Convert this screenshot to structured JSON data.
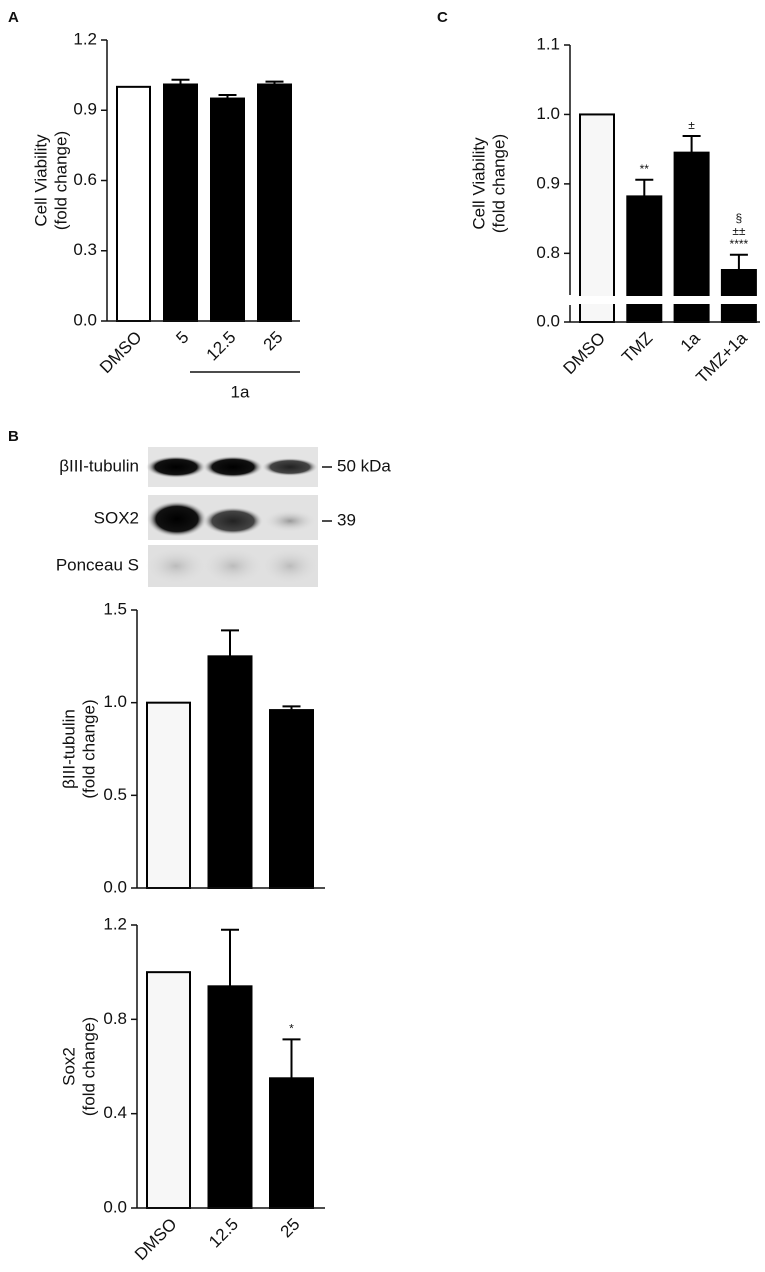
{
  "panels": [
    "A",
    "B",
    "C"
  ],
  "blot": {
    "rows": [
      {
        "label": "βIII-tubulin",
        "marker": "50 kDa"
      },
      {
        "label": "SOX2",
        "marker": "39"
      },
      {
        "label": "Ponceau S",
        "marker": null
      }
    ]
  },
  "chart_data": [
    {
      "type": "bar",
      "ylabel": [
        "Cell Viability",
        "(fold change)"
      ],
      "categories": [
        "DMSO",
        "5",
        "12.5",
        "25"
      ],
      "values": [
        1.0,
        1.01,
        0.95,
        1.01
      ],
      "errors": [
        null,
        0.02,
        0.015,
        0.012
      ],
      "colors": [
        "#ffffff",
        "#000000",
        "#000000",
        "#000000"
      ],
      "group_label": "1a",
      "ylim": [
        0,
        1.2
      ],
      "yticks": [
        {
          "value": 0,
          "label": "0.0"
        },
        0.3,
        0.6,
        0.9,
        1.2
      ]
    },
    {
      "type": "bar",
      "ylabel": [
        "Cell Viability",
        "(fold change)"
      ],
      "categories": [
        "DMSO",
        "TMZ",
        "1a",
        "TMZ+1a"
      ],
      "values": [
        1.0,
        0.882,
        0.945,
        0.776
      ],
      "errors": [
        null,
        0.024,
        0.024,
        0.022
      ],
      "colors": [
        "#f7f7f7",
        "#000000",
        "#000000",
        "#000000"
      ],
      "value_annotations": [
        null,
        [
          "**"
        ],
        [
          "±"
        ],
        [
          "§",
          "±±",
          "****"
        ]
      ],
      "ylim": [
        0,
        1.1
      ],
      "axis_break": [
        0.02,
        0.74
      ],
      "yticks": [
        {
          "value": 0,
          "label": "0.0"
        },
        0.8,
        0.9,
        {
          "value": 1,
          "label": "1.0"
        },
        1.1
      ]
    },
    {
      "type": "bar",
      "ylabel": [
        "βIII-tubulin",
        "(fold change)"
      ],
      "categories": [
        null,
        null,
        null
      ],
      "values": [
        1.0,
        1.25,
        0.96
      ],
      "errors": [
        null,
        0.14,
        0.02
      ],
      "colors": [
        "#f7f7f7",
        "#000000",
        "#000000"
      ],
      "ylim": [
        0,
        1.5
      ],
      "yticks": [
        {
          "value": 0,
          "label": "0.0"
        },
        0.5,
        {
          "value": 1,
          "label": "1.0"
        },
        1.5
      ]
    },
    {
      "type": "bar",
      "ylabel": [
        "Sox2",
        "(fold change)"
      ],
      "categories": [
        "DMSO",
        "12.5",
        "25"
      ],
      "values": [
        1.0,
        0.94,
        0.55
      ],
      "errors": [
        null,
        0.24,
        0.165
      ],
      "colors": [
        "#f7f7f7",
        "#000000",
        "#000000"
      ],
      "value_annotations": [
        null,
        null,
        [
          "*"
        ]
      ],
      "ylim": [
        0,
        1.2
      ],
      "yticks": [
        {
          "value": 0,
          "label": "0.0"
        },
        0.4,
        0.8,
        1.2
      ]
    }
  ]
}
